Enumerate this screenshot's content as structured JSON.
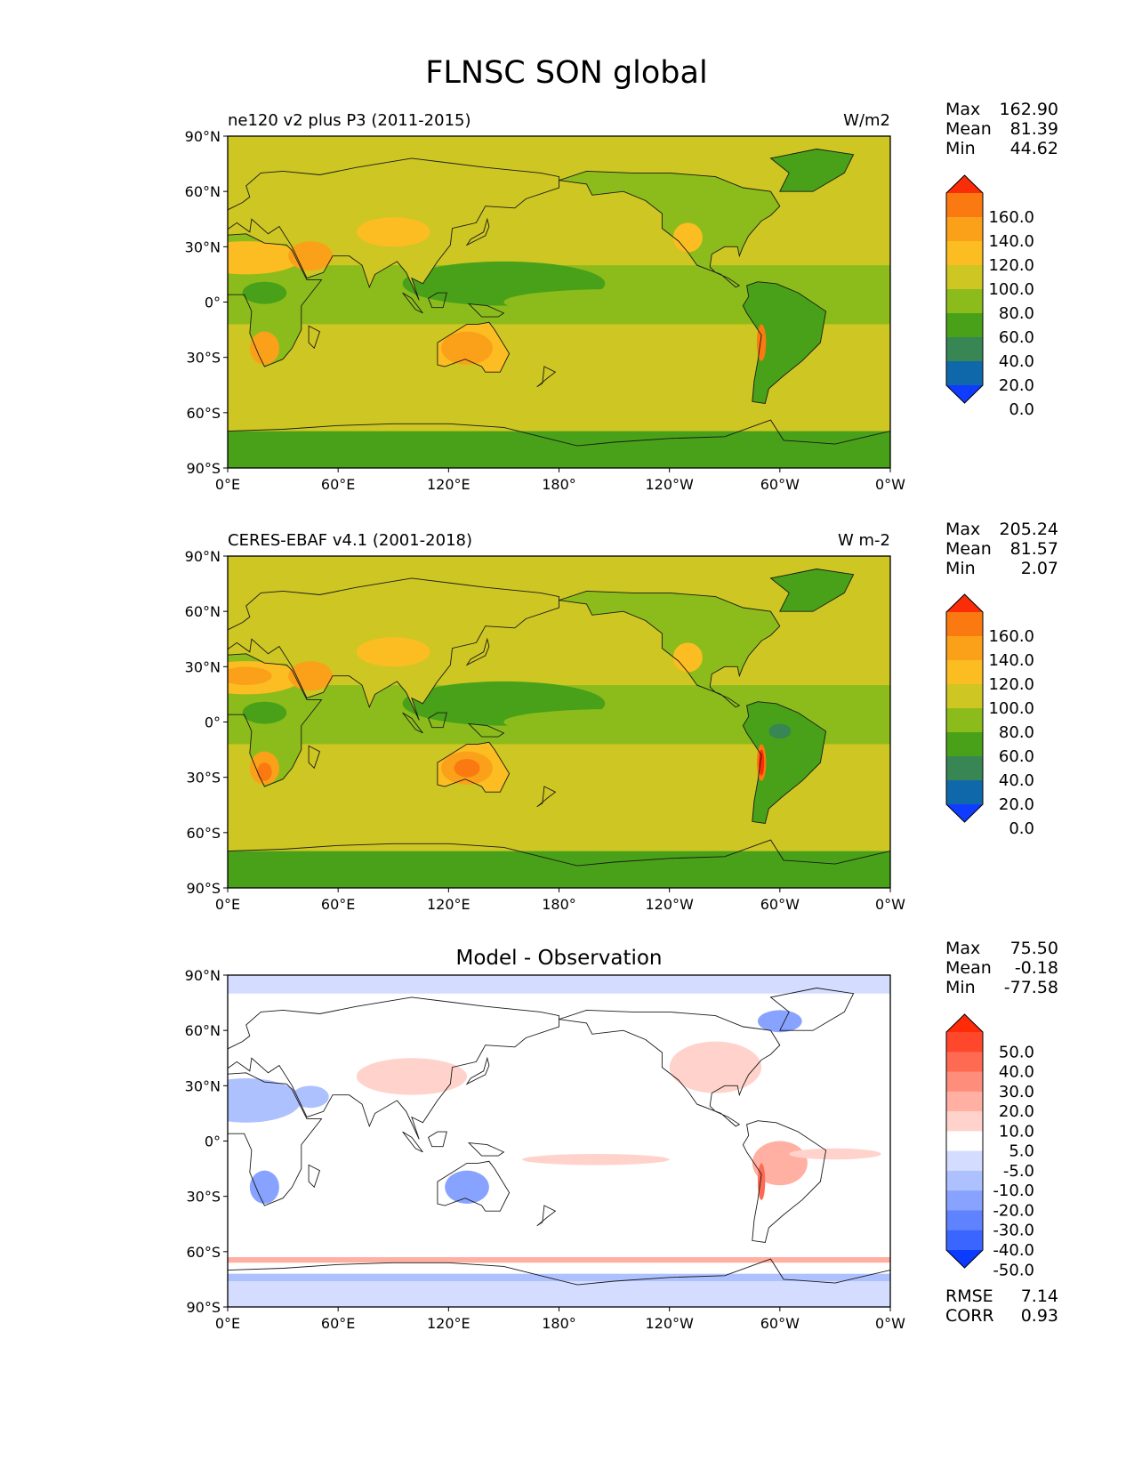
{
  "title": "FLNSC SON global",
  "panels": [
    {
      "label": "ne120 v2 plus P3 (2011-2015)",
      "units": "W/m2",
      "stats": {
        "max": "162.90",
        "mean": "81.39",
        "min": "44.62"
      },
      "kind": "model",
      "colorbar": {
        "colors": [
          "#0f3cff",
          "#0f68a9",
          "#378654",
          "#48a118",
          "#8cbc1b",
          "#cdc623",
          "#fbbd22",
          "#fba119",
          "#fb7911",
          "#fb2c08"
        ],
        "labels": [
          "0.0",
          "20.0",
          "40.0",
          "60.0",
          "80.0",
          "100.0",
          "120.0",
          "140.0",
          "160.0"
        ]
      }
    },
    {
      "label": "CERES-EBAF v4.1 (2001-2018)",
      "units": "W m-2",
      "stats": {
        "max": "205.24",
        "mean": "81.57",
        "min": "2.07"
      },
      "kind": "obs",
      "colorbar": {
        "colors": [
          "#0f3cff",
          "#0f68a9",
          "#378654",
          "#48a118",
          "#8cbc1b",
          "#cdc623",
          "#fbbd22",
          "#fba119",
          "#fb7911",
          "#fb2c08"
        ],
        "labels": [
          "0.0",
          "20.0",
          "40.0",
          "60.0",
          "80.0",
          "100.0",
          "120.0",
          "140.0",
          "160.0"
        ]
      }
    },
    {
      "label": "Model - Observation",
      "units": "",
      "stats": {
        "max": "75.50",
        "mean": "-0.18",
        "min": "-77.58"
      },
      "kind": "diff",
      "colorbar": {
        "colors": [
          "#0a3bff",
          "#3a66ff",
          "#5f82ff",
          "#88a3ff",
          "#aec1ff",
          "#d4ddff",
          "#ffffff",
          "#ffd3cb",
          "#ffb0a3",
          "#ff8d7b",
          "#ff6a53",
          "#ff472b",
          "#ff2a08"
        ],
        "labels": [
          "-50.0",
          "-40.0",
          "-30.0",
          "-20.0",
          "-10.0",
          "-5.0",
          "5.0",
          "10.0",
          "20.0",
          "30.0",
          "40.0",
          "50.0"
        ]
      },
      "metrics": {
        "rmse_label": "RMSE",
        "rmse": "7.14",
        "corr_label": "CORR",
        "corr": "0.93"
      }
    }
  ],
  "stat_labels": {
    "max": "Max",
    "mean": "Mean",
    "min": "Min"
  },
  "axes": {
    "x_ticks": [
      "0°E",
      "60°E",
      "120°E",
      "180°",
      "120°W",
      "60°W",
      "0°W"
    ],
    "y_ticks": [
      "90°N",
      "60°N",
      "30°N",
      "0°",
      "30°S",
      "60°S",
      "90°S"
    ]
  }
}
